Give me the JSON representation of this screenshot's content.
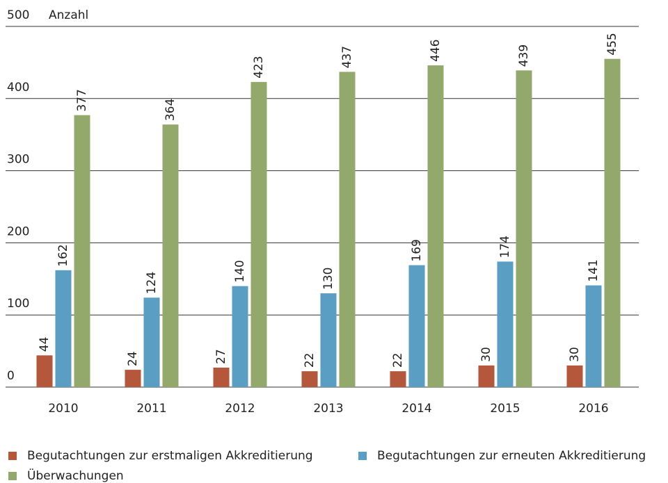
{
  "chart_data": {
    "type": "bar",
    "y_label": "Anzahl",
    "categories": [
      "2010",
      "2011",
      "2012",
      "2013",
      "2014",
      "2015",
      "2016"
    ],
    "series": [
      {
        "name": "Begutachtungen zur erstmaligen Akkreditierung",
        "color": "#b5573a",
        "values": [
          44,
          24,
          27,
          22,
          22,
          30,
          30
        ]
      },
      {
        "name": "Begutachtungen zur erneuten Akkreditierung",
        "color": "#5b9ec4",
        "values": [
          162,
          124,
          140,
          130,
          169,
          174,
          141
        ]
      },
      {
        "name": "Überwachungen",
        "color": "#93a86b",
        "values": [
          377,
          364,
          423,
          437,
          446,
          439,
          455
        ]
      }
    ],
    "ylim": [
      0,
      500
    ],
    "yticks": [
      0,
      100,
      200,
      300,
      400,
      500
    ],
    "grid": true
  }
}
